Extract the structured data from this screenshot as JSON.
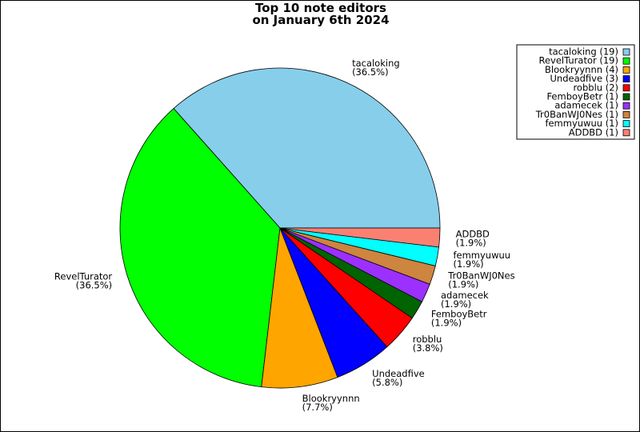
{
  "chart_data": {
    "type": "pie",
    "title": "Top 10 note editors\non January 6th 2024",
    "categories": [
      "tacaloking",
      "RevelTurator",
      "Blookryynnn",
      "Undeadfive",
      "robblu",
      "FemboyBetr",
      "adamecek",
      "Tr0BanWJ0Nes",
      "femmyuwuu",
      "ADDBD"
    ],
    "values": [
      36.5,
      36.5,
      7.7,
      5.8,
      3.8,
      1.9,
      1.9,
      1.9,
      1.9,
      1.9
    ],
    "value_labels": [
      "(36.5%)",
      "(36.5%)",
      "(7.7%)",
      "(5.8%)",
      "(3.8%)",
      "(1.9%)",
      "(1.9%)",
      "(1.9%)",
      "(1.9%)",
      "(1.9%)"
    ],
    "colors": [
      "#87ceeb",
      "#00ff00",
      "#ffa500",
      "#0000ff",
      "#ff0000",
      "#006400",
      "#9b30ff",
      "#cd853f",
      "#00ffff",
      "#fa8072"
    ],
    "legend_labels": [
      "tacaloking (19)",
      "RevelTurator (19)",
      "Blookryynnn (4)",
      "Undeadfive (3)",
      "robblu (2)",
      "FemboyBetr (1)",
      "adamecek (1)",
      "Tr0BanWJ0Nes (1)",
      "femmyuwuu (1)",
      "ADDBD (1)"
    ],
    "legend": "upper right"
  }
}
